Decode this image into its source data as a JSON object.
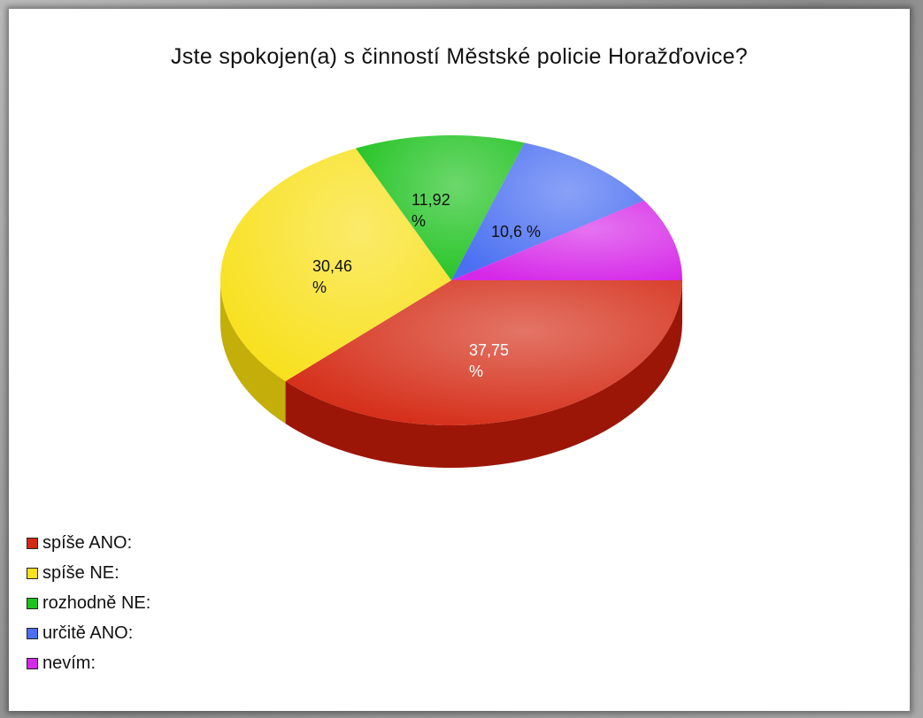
{
  "chart_data": {
    "type": "pie",
    "title": "Jste spokojen(a) s činností Městské policie Horažďovice?",
    "slices": [
      {
        "label": "spíše ANO:",
        "value": 37.75,
        "display": "37,75",
        "display_unit": "%",
        "color": "#d42a14",
        "side": "#9c1608",
        "text_color": "#ffffff"
      },
      {
        "label": "spíše NE:",
        "value": 30.46,
        "display": "30,46",
        "display_unit": "%",
        "color": "#f8e01a",
        "side": "#c4ae0a",
        "text_color": "#111111"
      },
      {
        "label": "rozhodně NE:",
        "value": 11.92,
        "display": "11,92",
        "display_unit": "%",
        "color": "#1ec21e",
        "side": "#128a12",
        "text_color": "#111111"
      },
      {
        "label": "určitě ANO:",
        "value": 10.6,
        "display": "10,6 %",
        "display_unit": "",
        "color": "#4a6ff2",
        "side": "#2e4bb8",
        "text_color": "#111111"
      },
      {
        "label": "nevím:",
        "value": 9.27,
        "display": "",
        "display_unit": "",
        "color": "#d628e8",
        "side": "#9e17ae",
        "text_color": "#111111"
      }
    ],
    "legend_placement": "bottom-left"
  }
}
